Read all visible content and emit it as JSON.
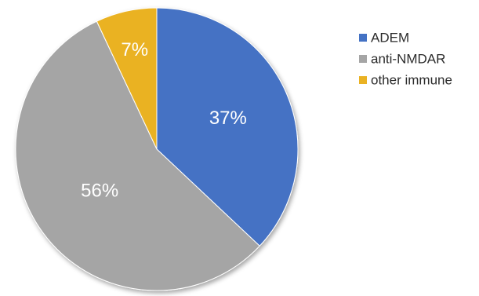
{
  "chart_data": {
    "type": "pie",
    "start_angle_deg": 0,
    "direction": "clockwise",
    "slices": [
      {
        "name": "ADEM",
        "value": 37,
        "label": "37%",
        "color": "#4472c4"
      },
      {
        "name": "anti-NMDAR",
        "value": 56,
        "label": "56%",
        "color": "#a5a5a5"
      },
      {
        "name": "other immune",
        "value": 7,
        "label": "7%",
        "color": "#eab223"
      }
    ],
    "legend_position": "right"
  }
}
